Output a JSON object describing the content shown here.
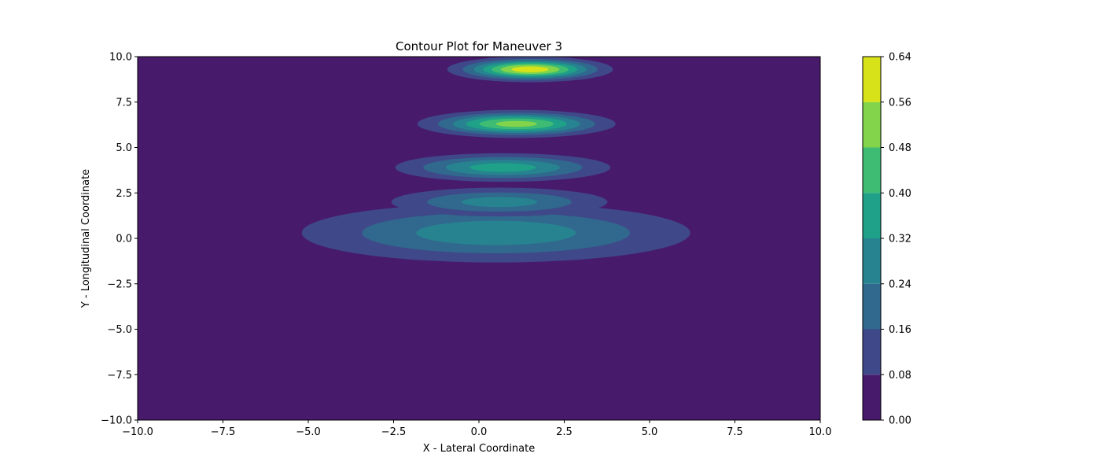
{
  "chart_data": {
    "type": "contour",
    "title": "Contour Plot for Maneuver 3",
    "xlabel": "X - Lateral Coordinate",
    "ylabel": "Y - Longitudinal Coordinate",
    "xlim": [
      -10,
      10
    ],
    "ylim": [
      -10,
      10
    ],
    "x_ticks": [
      "−10.0",
      "−7.5",
      "−5.0",
      "−2.5",
      "0.0",
      "2.5",
      "5.0",
      "7.5",
      "10.0"
    ],
    "y_ticks": [
      "−10.0",
      "−7.5",
      "−5.0",
      "−2.5",
      "0.0",
      "2.5",
      "5.0",
      "7.5",
      "10.0"
    ],
    "x_tick_values": [
      -10,
      -7.5,
      -5,
      -2.5,
      0,
      2.5,
      5,
      7.5,
      10
    ],
    "y_tick_values": [
      -10,
      -7.5,
      -5,
      -2.5,
      0,
      2.5,
      5,
      7.5,
      10
    ],
    "colorbar": {
      "levels": [
        0.0,
        0.08,
        0.16,
        0.24,
        0.32,
        0.4,
        0.48,
        0.56,
        0.64
      ],
      "tick_labels": [
        "0.00",
        "0.08",
        "0.16",
        "0.24",
        "0.32",
        "0.40",
        "0.48",
        "0.56",
        "0.64"
      ],
      "colors": [
        "#481a6c",
        "#3f4889",
        "#31688e",
        "#26838f",
        "#1fa088",
        "#3fbc73",
        "#84d44b",
        "#d8e219"
      ]
    },
    "peaks": [
      {
        "x": 0.5,
        "y": 0.3,
        "value": 0.3,
        "sx": 3.5,
        "sy": 1.0
      },
      {
        "x": 0.6,
        "y": 2.0,
        "value": 0.28,
        "sx": 2.0,
        "sy": 0.5
      },
      {
        "x": 0.7,
        "y": 3.9,
        "value": 0.37,
        "sx": 1.8,
        "sy": 0.45
      },
      {
        "x": 1.1,
        "y": 6.3,
        "value": 0.52,
        "sx": 1.5,
        "sy": 0.4
      },
      {
        "x": 1.5,
        "y": 9.3,
        "value": 0.62,
        "sx": 1.2,
        "sy": 0.35
      }
    ]
  }
}
